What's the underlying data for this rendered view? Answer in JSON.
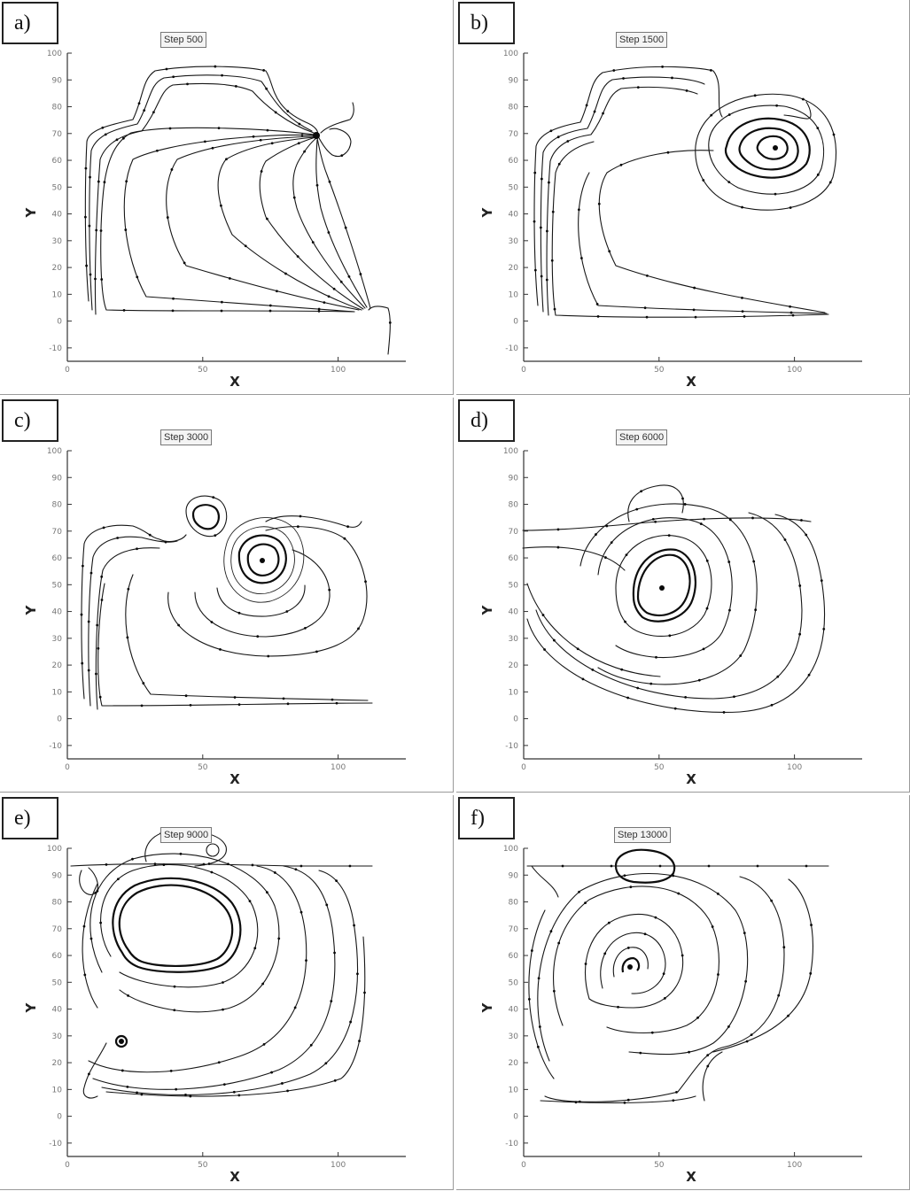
{
  "figure": {
    "axis_ticks_x": [
      "0",
      "50",
      "100"
    ],
    "axis_ticks_y": [
      "-10",
      "0",
      "10",
      "20",
      "30",
      "40",
      "50",
      "60",
      "70",
      "80",
      "90",
      "100"
    ],
    "x_range": [
      0,
      125
    ],
    "y_range": [
      -15,
      100
    ],
    "panels": [
      {
        "label": "a)",
        "step": "Step 500",
        "xlabel": "X",
        "ylabel": "Y"
      },
      {
        "label": "b)",
        "step": "Step 1500",
        "xlabel": "X",
        "ylabel": "Y"
      },
      {
        "label": "c)",
        "step": "Step 3000",
        "xlabel": "X",
        "ylabel": "Y"
      },
      {
        "label": "d)",
        "step": "Step 6000",
        "xlabel": "X",
        "ylabel": "Y"
      },
      {
        "label": "e)",
        "step": "Step 9000",
        "xlabel": "X",
        "ylabel": "Y"
      },
      {
        "label": "f)",
        "step": "Step 13000",
        "xlabel": "X",
        "ylabel": "Y"
      }
    ]
  }
}
